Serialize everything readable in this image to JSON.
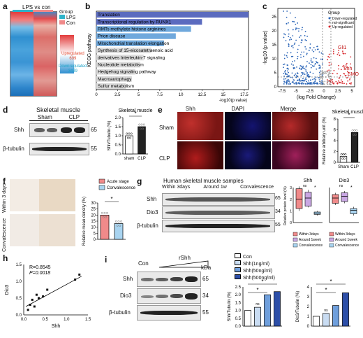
{
  "panels": {
    "a": {
      "label": "a",
      "lps": "LPS",
      "vs": "vs",
      "con": "con",
      "legend_title": "Group",
      "legend": [
        "LPS",
        "Con"
      ],
      "up_label": "Upregulated",
      "up_n": "699",
      "down_label": "Downregulated",
      "down_n": "3439"
    },
    "b": {
      "label": "b",
      "ylabel": "KEGG pathway",
      "xlabel": "-log10(p value)",
      "ticks": [
        "0",
        "2.5",
        "5",
        "7.5",
        "10",
        "12.5",
        "15",
        "17.5"
      ]
    },
    "c": {
      "label": "c",
      "ylabel": "-log10 (p value)",
      "xlabel": "(log Fold Change)",
      "xticks": [
        "-7.5",
        "-5",
        "-2.5",
        "0",
        "2.5",
        "5"
      ],
      "yticks": [
        "0",
        "5",
        "10",
        "15",
        "20",
        "25"
      ],
      "legend_title": "Group",
      "legend": [
        "Down-regulated",
        "not-significant",
        "Up-regulated"
      ],
      "genes": [
        "Gli1",
        "Shh",
        "SMO"
      ]
    },
    "d": {
      "label": "d",
      "title": "Skeletal muscle",
      "sham": "Sham",
      "clp": "CLP",
      "shh": "Shh",
      "tub": "β-tubulin",
      "kda65": "65",
      "kda55": "55",
      "chart_title": "Skeletal muscle",
      "ylabel": "Shh/Tubulin (%)",
      "yticks": [
        "0.0",
        "0.5",
        "1.0",
        "1.5",
        "2.0"
      ],
      "cats": [
        "sham",
        "CLP"
      ],
      "star": "*"
    },
    "e": {
      "label": "e",
      "cols": [
        "Shh",
        "DAPI",
        "Merge"
      ],
      "rows": [
        "Sham",
        "CLP"
      ],
      "chart_title": "Skeletal muscle",
      "ylabel": "Relative arbitrary unit (%)",
      "yticks": [
        "0",
        "2",
        "4",
        "6",
        "8"
      ],
      "cats": [
        "Sham",
        "CLP"
      ],
      "star": "*"
    },
    "f": {
      "label": "f",
      "rows": [
        "Within 3 days",
        "Convalescence"
      ],
      "ylabel": "Relative mean density (%)",
      "yticks": [
        "0",
        "5",
        "10",
        "15",
        "20",
        "25",
        "30"
      ],
      "legend": [
        "Acute stage",
        "Convalescence"
      ],
      "star": "*"
    },
    "g": {
      "label": "g",
      "title": "Human skeletal muscle samples",
      "groups": [
        "Within 3days",
        "Around 1w",
        "Convalescence"
      ],
      "rows": [
        "Shh",
        "Dio3",
        "β-tubulin"
      ],
      "kda": [
        "65",
        "34",
        "55"
      ],
      "shh_title": "Shh",
      "dio_title": "Dio3",
      "ylabel": "Relative protein level (%)",
      "yticks": [
        "0",
        "1",
        "2",
        "3"
      ],
      "legend": [
        "Within 3days",
        "Around 1week",
        "Convalescence"
      ],
      "ns": "ns",
      "star": "*"
    },
    "h": {
      "label": "h",
      "r": "R=0.8545",
      "p": "P=0.0018",
      "xlabel": "Shh",
      "ylabel": "Dio3",
      "xticks": [
        "0.0",
        "0.5",
        "1.0",
        "1.5"
      ],
      "yticks": [
        "0.0",
        "0.5",
        "1.0",
        "1.5"
      ]
    },
    "i": {
      "label": "i",
      "con": "Con",
      "rshh": "rShh",
      "kda_head": "kDa",
      "rows": [
        "Shh",
        "Dio3",
        "β-tubulin"
      ],
      "kda": [
        "65",
        "34",
        "55"
      ],
      "legend": [
        "Con",
        "Shh(1ng/ml)",
        "Shh(50ng/ml)",
        "Shh(500ng/ml)"
      ],
      "ylabel1": "Shh/Tubulin (%)",
      "ylabel2": "Dio3/Tubulin (%)",
      "yticks1": [
        "0.0",
        "0.5",
        "1.0",
        "1.5",
        "2.0",
        "2.5"
      ],
      "yticks2": [
        "0",
        "1",
        "2",
        "3",
        "4"
      ],
      "ns": "ns",
      "star": "*"
    }
  },
  "kegg_pathways": [
    "Translation",
    "Transcriptional regulation by RUNX1",
    "RMTs methylate histone arginines",
    "Prion disease",
    "Mitochondrial translation elongation",
    "Synthesis of 15-eicosatetraenoic acid",
    "derivatives Interleukin-7 signaling",
    "Nucleotide metabolism",
    "Hedgehog signaling pathway",
    "Macroautophagy",
    "Sulfur metabolism"
  ],
  "chart_data": [
    {
      "type": "bar",
      "panel": "b",
      "orientation": "horizontal",
      "xlabel": "-log10(p value)",
      "ylabel": "KEGG pathway",
      "categories": [
        "Translation",
        "Transcriptional regulation by RUNX1",
        "RMTs methylate histone arginines",
        "Prion disease",
        "Mitochondrial translation elongation",
        "Synthesis of 15-eicosatetraenoic acid",
        "derivatives Interleukin-7 signaling",
        "Nucleotide metabolism",
        "Hedgehog signaling pathway",
        "Macroautophagy",
        "Sulfur metabolism"
      ],
      "values": [
        18,
        12.5,
        11.2,
        9.4,
        8.0,
        6.5,
        5.6,
        5.2,
        4.6,
        4.2,
        3.5
      ],
      "xlim": [
        0,
        18
      ],
      "colors": [
        "#5b6bbf",
        "#5b6bbf",
        "#6fa8dc",
        "#6fa8dc",
        "#6fa8dc",
        "#dcdcdc",
        "#dcdcdc",
        "#dcdcdc",
        "#dcdcdc",
        "#dcdcdc",
        "#dcdcdc"
      ]
    },
    {
      "type": "bar",
      "panel": "d",
      "categories": [
        "sham",
        "CLP"
      ],
      "values": [
        1.0,
        1.5
      ],
      "ylim": [
        0,
        2
      ],
      "ylabel": "Shh/Tubulin (%)",
      "colors": [
        "#ffffff",
        "#222222"
      ]
    },
    {
      "type": "bar",
      "panel": "e",
      "categories": [
        "Sham",
        "CLP"
      ],
      "values": [
        1.1,
        5.5
      ],
      "ylim": [
        0,
        8
      ],
      "ylabel": "Relative arbitrary unit (%)",
      "colors": [
        "#ffffff",
        "#222222"
      ]
    },
    {
      "type": "bar",
      "panel": "f",
      "categories": [
        "Acute stage",
        "Convalescence"
      ],
      "values": [
        20,
        13
      ],
      "ylim": [
        0,
        30
      ],
      "ylabel": "Relative mean density (%)",
      "colors": [
        "#f08a8a",
        "#a9d4f0"
      ]
    },
    {
      "type": "box",
      "panel": "g-shh",
      "categories": [
        "Within 3days",
        "Around 1week",
        "Convalescence"
      ],
      "q1": [
        1.2,
        1.4,
        0.7
      ],
      "median": [
        2.0,
        2.1,
        0.8
      ],
      "q3": [
        2.9,
        2.6,
        0.9
      ],
      "min": [
        1.0,
        1.3,
        0.6
      ],
      "max": [
        3.1,
        2.8,
        1.0
      ],
      "ylim": [
        0,
        3
      ],
      "colors": [
        "#f08a8a",
        "#c9a7e3",
        "#a9d4f0"
      ]
    },
    {
      "type": "box",
      "panel": "g-dio3",
      "categories": [
        "Within 3days",
        "Around 1week",
        "Convalescence"
      ],
      "q1": [
        1.1,
        1.2,
        0.5
      ],
      "median": [
        1.4,
        1.5,
        0.7
      ],
      "q3": [
        1.6,
        1.7,
        0.8
      ],
      "min": [
        1.0,
        1.1,
        0.4
      ],
      "max": [
        1.7,
        1.8,
        0.9
      ],
      "ylim": [
        0,
        2
      ],
      "colors": [
        "#f08a8a",
        "#c9a7e3",
        "#a9d4f0"
      ]
    },
    {
      "type": "scatter",
      "panel": "h",
      "xlabel": "Shh",
      "ylabel": "Dio3",
      "xlim": [
        0,
        1.5
      ],
      "ylim": [
        0,
        1.5
      ],
      "x": [
        0.1,
        0.15,
        0.2,
        0.25,
        0.3,
        0.35,
        0.45,
        0.55,
        1.2,
        1.3
      ],
      "y": [
        0.15,
        0.3,
        0.45,
        0.25,
        0.6,
        0.5,
        0.55,
        0.75,
        1.05,
        1.2
      ]
    },
    {
      "type": "bar",
      "panel": "i-shh",
      "categories": [
        "Con",
        "Shh(1ng/ml)",
        "Shh(50ng/ml)",
        "Shh(500ng/ml)"
      ],
      "values": [
        1.0,
        1.2,
        2.0,
        2.2
      ],
      "ylim": [
        0,
        2.5
      ],
      "colors": [
        "#ffffff",
        "#c9dcf2",
        "#6f9fdc",
        "#2d4fa8"
      ]
    },
    {
      "type": "bar",
      "panel": "i-dio3",
      "categories": [
        "Con",
        "Shh(1ng/ml)",
        "Shh(50ng/ml)",
        "Shh(500ng/ml)"
      ],
      "values": [
        1.0,
        1.3,
        2.1,
        3.4
      ],
      "ylim": [
        0,
        4
      ],
      "colors": [
        "#ffffff",
        "#c9dcf2",
        "#6f9fdc",
        "#2d4fa8"
      ]
    }
  ]
}
